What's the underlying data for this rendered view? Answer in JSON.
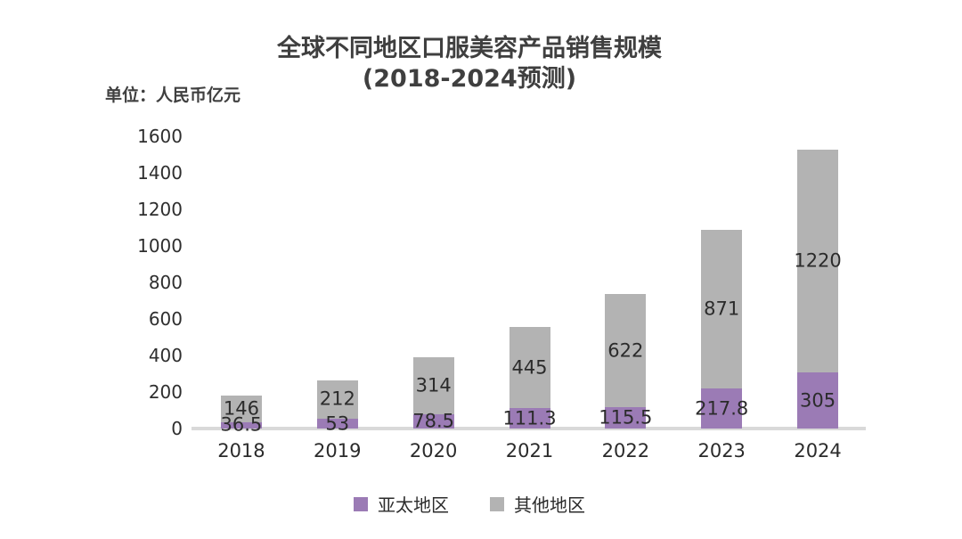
{
  "title": {
    "line1": "全球不同地区口服美容产品销售规模",
    "line2": "(2018-2024预测)"
  },
  "unit_label": "单位：人民币亿元",
  "legend": [
    {
      "label": "亚太地区",
      "color": "#9b7bb5"
    },
    {
      "label": "其他地区",
      "color": "#b3b3b3"
    }
  ],
  "colors": {
    "asia_pacific": "#9b7bb5",
    "other_regions": "#b3b3b3",
    "axis_line": "#d9d9d9",
    "title_text": "#3f3f3f",
    "label_text": "#2b2b2b",
    "background": "#ffffff"
  },
  "chart_data": {
    "type": "bar",
    "stacked": true,
    "title": "全球不同地区口服美容产品销售规模 (2018-2024预测)",
    "subtitle": "单位：人民币亿元",
    "categories": [
      "2018",
      "2019",
      "2020",
      "2021",
      "2022",
      "2023",
      "2024"
    ],
    "series": [
      {
        "name": "亚太地区",
        "color": "#9b7bb5",
        "values": [
          36.5,
          53,
          78.5,
          111.3,
          115.5,
          217.8,
          305
        ]
      },
      {
        "name": "其他地区",
        "color": "#b3b3b3",
        "values": [
          146,
          212,
          314,
          445,
          622,
          871,
          1220
        ]
      }
    ],
    "xlabel": "",
    "ylabel": "单位：人民币亿元",
    "ylim": [
      0,
      1600
    ],
    "yticks": [
      0,
      200,
      400,
      600,
      800,
      1000,
      1200,
      1400,
      1600
    ],
    "grid": false,
    "data_labels": true,
    "legend_position": "bottom"
  }
}
